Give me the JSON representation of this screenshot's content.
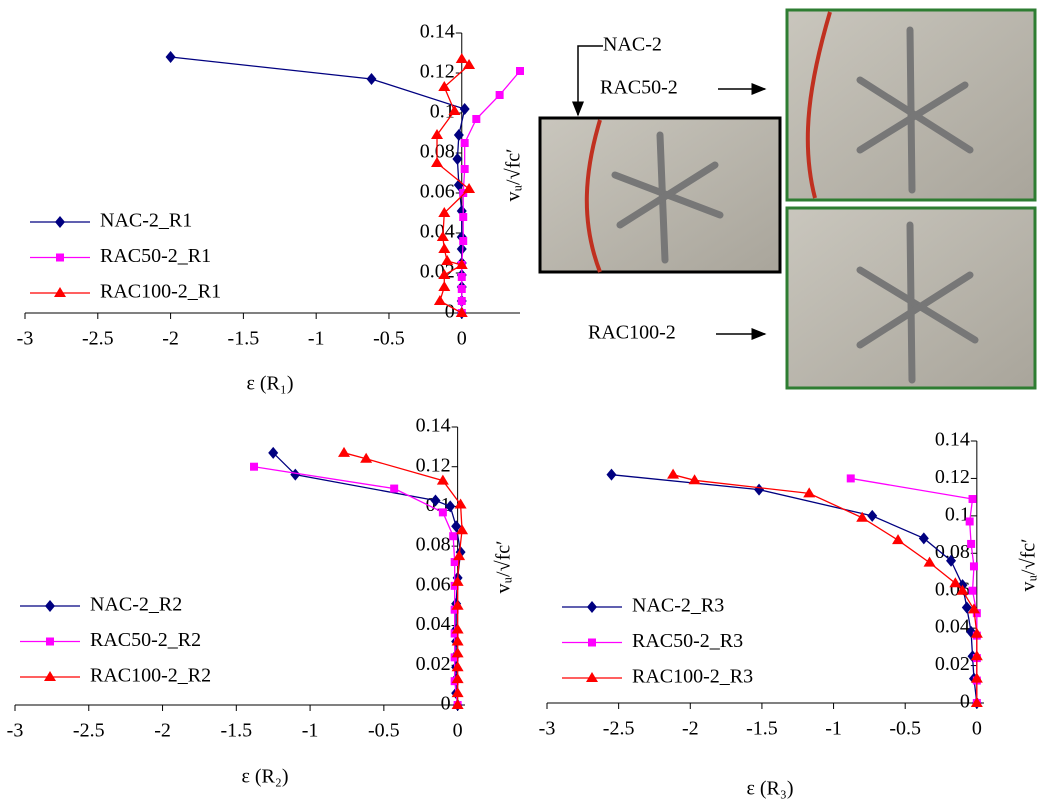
{
  "chart_data": [
    {
      "type": "line",
      "xlabel": "ε (R₁)",
      "ylabel": "vᵤ/√fc′",
      "xlim": [
        -3,
        0.4
      ],
      "ylim": [
        0,
        0.14
      ],
      "xticks": [
        -3,
        -2.5,
        -2,
        -1.5,
        -1,
        -0.5,
        0
      ],
      "yticks": [
        0,
        0.02,
        0.04,
        0.06,
        0.08,
        0.1,
        0.12,
        0.14
      ],
      "series": [
        {
          "name": "NAC-2_R1",
          "color": "#000080",
          "marker": "diamond",
          "x": [
            -2.0,
            -0.62,
            0.02,
            -0.02,
            -0.03,
            -0.02,
            0,
            0,
            0,
            0,
            0,
            0,
            0,
            0
          ],
          "values": [
            0.128,
            0.117,
            0.102,
            0.089,
            0.077,
            0.064,
            0.051,
            0.038,
            0.032,
            0.025,
            0.019,
            0.013,
            0.006,
            0
          ]
        },
        {
          "name": "RAC50-2_R1",
          "color": "#ff00ff",
          "marker": "square",
          "x": [
            0.4,
            0.26,
            0.1,
            0.02,
            0.02,
            0.01,
            0.01,
            0.01,
            0,
            0,
            0,
            0,
            0
          ],
          "values": [
            0.121,
            0.109,
            0.097,
            0.085,
            0.072,
            0.06,
            0.048,
            0.036,
            0.024,
            0.018,
            0.012,
            0.006,
            0
          ]
        },
        {
          "name": "RAC100-2_R1",
          "color": "#ff0000",
          "marker": "triangle",
          "x": [
            0,
            0.05,
            -0.12,
            -0.05,
            -0.17,
            -0.17,
            0.05,
            -0.12,
            -0.13,
            -0.12,
            -0.1,
            0,
            -0.12,
            -0.12,
            -0.15,
            0
          ],
          "values": [
            0.127,
            0.124,
            0.113,
            0.101,
            0.089,
            0.075,
            0.062,
            0.05,
            0.038,
            0.032,
            0.026,
            0.024,
            0.019,
            0.013,
            0.006,
            0
          ]
        }
      ]
    },
    {
      "type": "line",
      "xlabel": "ε (R₂)",
      "ylabel": "vᵤ/√fc′",
      "xlim": [
        -3,
        0.05
      ],
      "ylim": [
        0,
        0.14
      ],
      "xticks": [
        -3,
        -2.5,
        -2,
        -1.5,
        -1,
        -0.5,
        0
      ],
      "yticks": [
        0,
        0.02,
        0.04,
        0.06,
        0.08,
        0.1,
        0.12,
        0.14
      ],
      "series": [
        {
          "name": "NAC-2_R2",
          "color": "#000080",
          "marker": "diamond",
          "x": [
            -1.25,
            -1.1,
            -0.15,
            -0.05,
            -0.01,
            0.02,
            0,
            -0.01,
            -0.01,
            -0.01,
            -0.01,
            -0.01,
            -0.01,
            -0.01,
            0
          ],
          "values": [
            0.127,
            0.116,
            0.103,
            0.1,
            0.09,
            0.077,
            0.064,
            0.051,
            0.038,
            0.032,
            0.025,
            0.019,
            0.013,
            0.006,
            0
          ]
        },
        {
          "name": "RAC50-2_R2",
          "color": "#ff00ff",
          "marker": "square",
          "x": [
            -1.38,
            -0.43,
            -0.1,
            -0.03,
            -0.02,
            -0.02,
            -0.02,
            -0.02,
            -0.02,
            -0.02,
            0
          ],
          "values": [
            0.12,
            0.109,
            0.097,
            0.085,
            0.072,
            0.06,
            0.048,
            0.036,
            0.024,
            0.012,
            0
          ]
        },
        {
          "name": "RAC100-2_R2",
          "color": "#ff0000",
          "marker": "triangle",
          "x": [
            -0.77,
            -0.62,
            -0.1,
            0.02,
            0.03,
            0.01,
            0,
            0,
            0,
            0,
            0,
            0,
            0,
            0,
            0
          ],
          "values": [
            0.127,
            0.124,
            0.113,
            0.101,
            0.088,
            0.075,
            0.062,
            0.05,
            0.038,
            0.032,
            0.026,
            0.019,
            0.013,
            0.006,
            0
          ]
        }
      ]
    },
    {
      "type": "line",
      "xlabel": "ε (R₃)",
      "ylabel": "vᵤ/√fc′",
      "xlim": [
        -3,
        0.05
      ],
      "ylim": [
        0,
        0.14
      ],
      "xticks": [
        -3,
        -2.5,
        -2,
        -1.5,
        -1,
        -0.5,
        0
      ],
      "yticks": [
        0,
        0.02,
        0.04,
        0.06,
        0.08,
        0.1,
        0.12,
        0.14
      ],
      "series": [
        {
          "name": "NAC-2_R3",
          "color": "#000080",
          "marker": "diamond",
          "x": [
            -2.55,
            -1.52,
            -0.73,
            -0.37,
            -0.18,
            -0.1,
            -0.07,
            -0.04,
            -0.03,
            -0.02,
            0
          ],
          "values": [
            0.122,
            0.114,
            0.1,
            0.088,
            0.076,
            0.063,
            0.051,
            0.038,
            0.025,
            0.013,
            0
          ]
        },
        {
          "name": "RAC50-2_R3",
          "color": "#ff00ff",
          "marker": "square",
          "x": [
            -0.88,
            -0.03,
            -0.05,
            -0.04,
            -0.02,
            -0.03,
            0,
            0,
            0,
            0,
            0
          ],
          "values": [
            0.12,
            0.109,
            0.097,
            0.085,
            0.073,
            0.06,
            0.048,
            0.036,
            0.024,
            0.012,
            0
          ]
        },
        {
          "name": "RAC100-2_R3",
          "color": "#ff0000",
          "marker": "triangle",
          "x": [
            -2.12,
            -1.97,
            -1.17,
            -0.8,
            -0.55,
            -0.33,
            -0.15,
            -0.1,
            -0.02,
            0,
            0,
            0,
            0
          ],
          "values": [
            0.122,
            0.119,
            0.112,
            0.099,
            0.087,
            0.075,
            0.064,
            0.06,
            0.05,
            0.037,
            0.025,
            0.013,
            0
          ]
        }
      ]
    }
  ],
  "photo_labels": [
    "NAC-2",
    "RAC50-2",
    "RAC100-2"
  ]
}
